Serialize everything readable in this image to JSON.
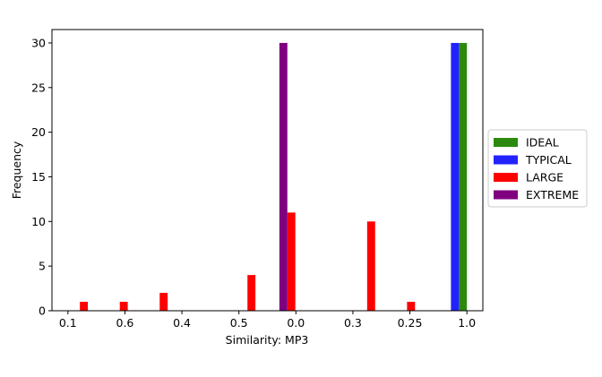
{
  "chart_data": {
    "type": "bar",
    "xlabel": "Similarity: MP3",
    "ylabel": "Frequency",
    "x_tick_labels": [
      "0.1",
      "0.6",
      "0.4",
      "0.5",
      "0.0",
      "0.3",
      "0.25",
      "1.0"
    ],
    "x_tick_positions": [
      0.0,
      0.1429,
      0.2857,
      0.4286,
      0.5714,
      0.7143,
      0.8571,
      1.0
    ],
    "xlim": [
      -0.04,
      1.04
    ],
    "yticks": [
      0,
      5,
      10,
      15,
      20,
      25,
      30
    ],
    "ylim": [
      0,
      31.5
    ],
    "grid": false,
    "legend_position": "center-right-outside",
    "bar_width": 0.02,
    "series": [
      {
        "name": "IDEAL",
        "color": "#2b8a0e",
        "points": [
          {
            "x": 0.99,
            "y": 30
          }
        ]
      },
      {
        "name": "TYPICAL",
        "color": "#2222ff",
        "points": [
          {
            "x": 0.97,
            "y": 30
          }
        ]
      },
      {
        "name": "LARGE",
        "color": "#ff0000",
        "points": [
          {
            "x": 0.04,
            "y": 1
          },
          {
            "x": 0.14,
            "y": 1
          },
          {
            "x": 0.24,
            "y": 2
          },
          {
            "x": 0.46,
            "y": 4
          },
          {
            "x": 0.56,
            "y": 11
          },
          {
            "x": 0.76,
            "y": 10
          },
          {
            "x": 0.86,
            "y": 1
          }
        ]
      },
      {
        "name": "EXTREME",
        "color": "#800080",
        "points": [
          {
            "x": 0.54,
            "y": 30
          }
        ]
      }
    ]
  }
}
